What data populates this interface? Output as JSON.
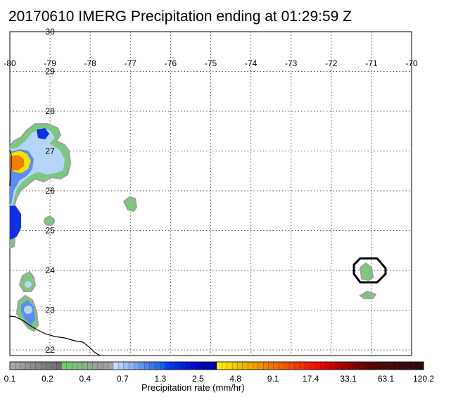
{
  "title": "20170610 IMERG Precipitation ending at 01:29:59 Z",
  "map": {
    "lon_ticks": [
      "-80",
      "-79",
      "-78",
      "-77",
      "-76",
      "-75",
      "-74",
      "-73",
      "-72",
      "-71",
      "-70"
    ],
    "lat_ticks": [
      "30",
      "29",
      "28",
      "27",
      "26",
      "25",
      "24",
      "23",
      "22"
    ],
    "grid": true,
    "grid_style": "dotted",
    "features": [
      {
        "name": "coastline",
        "color": "#000000"
      },
      {
        "name": "storm-marker-circle",
        "color": "#000000"
      }
    ],
    "precip_colors": {
      "light": "#7cc87c",
      "edge": "#a0a0a0",
      "blue_light": "#b4d4f8",
      "blue_mid": "#5a8ef0",
      "blue_deep": "#1030e0",
      "yellow": "#f8e000",
      "orange": "#f08000"
    }
  },
  "colorbar": {
    "title": "Precipitation rate (mm/hr)",
    "labels": [
      "0.1",
      "0.2",
      "0.4",
      "0.7",
      "1.3",
      "2.5",
      "4.8",
      "9.1",
      "17.4",
      "33.1",
      "63.1",
      "120.2"
    ],
    "colors": [
      "#aaaaaa",
      "#a3a3a3",
      "#9c9c9c",
      "#959595",
      "#8e8e8e",
      "#878787",
      "#808080",
      "#7a7a7a",
      "#747474",
      "#6e6e6e",
      "#6ccf6c",
      "#73c873",
      "#79c179",
      "#80ba80",
      "#86b386",
      "#8dac8d",
      "#93a593",
      "#9a9e9a",
      "#a0a0a0",
      "#a6a6a6",
      "#c8dcf8",
      "#b4cef6",
      "#a0c0f4",
      "#8cb2f2",
      "#78a4f0",
      "#6496ee",
      "#5088ec",
      "#3c7aea",
      "#286ce8",
      "#145ee6",
      "#0040f0",
      "#0036e8",
      "#002ce0",
      "#0022d8",
      "#0018d0",
      "#000ec8",
      "#0004c0",
      "#0000b8",
      "#0000b0",
      "#0000a8",
      "#fff000",
      "#fce400",
      "#f9d800",
      "#f6cc00",
      "#f3c000",
      "#f0b400",
      "#f0a800",
      "#f09c00",
      "#f09000",
      "#f08400",
      "#f07800",
      "#f06c00",
      "#f06000",
      "#f05400",
      "#f04800",
      "#f03c00",
      "#f03000",
      "#f02400",
      "#f01800",
      "#f00c00",
      "#e80000",
      "#d80000",
      "#c80000",
      "#b80000",
      "#a80000",
      "#980000",
      "#880000",
      "#780000",
      "#680000",
      "#580000",
      "#540000",
      "#500808",
      "#4c0808",
      "#480808",
      "#440808",
      "#400808",
      "#3c0808",
      "#380808",
      "#340808",
      "#300808"
    ]
  }
}
